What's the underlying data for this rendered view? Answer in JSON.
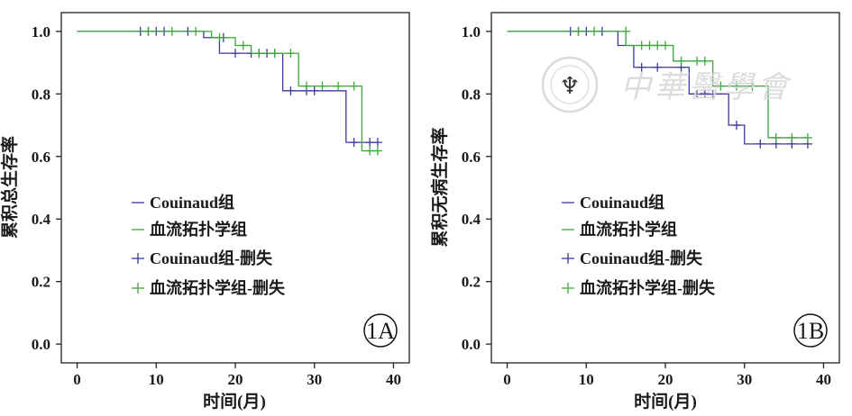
{
  "chart_data": [
    {
      "type": "line",
      "subtype": "kaplan-meier",
      "panel_label": "1A",
      "ylabel": "累积总生存率",
      "xlabel": "时间(月)",
      "xlim": [
        -2,
        42
      ],
      "ylim": [
        -0.06,
        1.06
      ],
      "xticks": [
        0,
        10,
        20,
        30,
        40
      ],
      "yticks": [
        0.0,
        0.2,
        0.4,
        0.6,
        0.8,
        1.0
      ],
      "ytick_labels": [
        "0.0",
        "0.2",
        "0.4",
        "0.6",
        "0.8",
        "1.0"
      ],
      "legend_position": "center-left",
      "series": [
        {
          "name": "Couinaud组",
          "censor_name": "Couinaud组-删失",
          "color": "#3a3a9e",
          "steps": [
            [
              0,
              1.0
            ],
            [
              16,
              0.98
            ],
            [
              18,
              0.93
            ],
            [
              26,
              0.81
            ],
            [
              34,
              0.645
            ],
            [
              38,
              0.645
            ]
          ],
          "censored": [
            [
              8,
              1.0
            ],
            [
              9,
              1.0
            ],
            [
              10,
              1.0
            ],
            [
              11,
              1.0
            ],
            [
              14,
              1.0
            ],
            [
              18.5,
              0.98
            ],
            [
              20,
              0.93
            ],
            [
              22,
              0.93
            ],
            [
              23,
              0.93
            ],
            [
              24,
              0.93
            ],
            [
              25,
              0.93
            ],
            [
              27,
              0.81
            ],
            [
              29,
              0.81
            ],
            [
              30,
              0.81
            ],
            [
              35,
              0.645
            ],
            [
              37,
              0.645
            ],
            [
              38,
              0.645
            ]
          ]
        },
        {
          "name": "血流拓扑学组",
          "censor_name": "血流拓扑学组-删失",
          "color": "#3aa83a",
          "steps": [
            [
              0,
              1.0
            ],
            [
              17,
              0.98
            ],
            [
              20,
              0.955
            ],
            [
              22,
              0.93
            ],
            [
              28,
              0.825
            ],
            [
              36,
              0.618
            ],
            [
              38,
              0.618
            ]
          ],
          "censored": [
            [
              9,
              1.0
            ],
            [
              12,
              1.0
            ],
            [
              15,
              1.0
            ],
            [
              18,
              0.98
            ],
            [
              21,
              0.955
            ],
            [
              23,
              0.93
            ],
            [
              25,
              0.93
            ],
            [
              27,
              0.93
            ],
            [
              29,
              0.825
            ],
            [
              31,
              0.825
            ],
            [
              33,
              0.825
            ],
            [
              35,
              0.825
            ],
            [
              37,
              0.618
            ],
            [
              38,
              0.618
            ]
          ]
        }
      ]
    },
    {
      "type": "line",
      "subtype": "kaplan-meier",
      "panel_label": "1B",
      "ylabel": "累积无病生存率",
      "xlabel": "时间(月)",
      "xlim": [
        -2,
        42
      ],
      "ylim": [
        -0.06,
        1.06
      ],
      "xticks": [
        0,
        10,
        20,
        30,
        40
      ],
      "yticks": [
        0.0,
        0.2,
        0.4,
        0.6,
        0.8,
        1.0
      ],
      "ytick_labels": [
        "0.0",
        "0.2",
        "0.4",
        "0.6",
        "0.8",
        "1.0"
      ],
      "legend_position": "center-left",
      "series": [
        {
          "name": "Couinaud组",
          "censor_name": "Couinaud组-删失",
          "color": "#3a3a9e",
          "steps": [
            [
              0,
              1.0
            ],
            [
              14,
              0.955
            ],
            [
              16,
              0.885
            ],
            [
              23,
              0.8
            ],
            [
              28,
              0.7
            ],
            [
              30,
              0.64
            ],
            [
              38,
              0.64
            ]
          ],
          "censored": [
            [
              8,
              1.0
            ],
            [
              9,
              1.0
            ],
            [
              10,
              1.0
            ],
            [
              12,
              1.0
            ],
            [
              17,
              0.885
            ],
            [
              19,
              0.885
            ],
            [
              22,
              0.885
            ],
            [
              24,
              0.8
            ],
            [
              25,
              0.8
            ],
            [
              26,
              0.8
            ],
            [
              29,
              0.7
            ],
            [
              32,
              0.64
            ],
            [
              34,
              0.64
            ],
            [
              36,
              0.64
            ],
            [
              38,
              0.64
            ]
          ]
        },
        {
          "name": "血流拓扑学组",
          "censor_name": "血流拓扑学组-删失",
          "color": "#3aa83a",
          "steps": [
            [
              0,
              1.0
            ],
            [
              15,
              0.955
            ],
            [
              21,
              0.905
            ],
            [
              26,
              0.825
            ],
            [
              33,
              0.66
            ],
            [
              38,
              0.66
            ]
          ],
          "censored": [
            [
              9,
              1.0
            ],
            [
              11,
              1.0
            ],
            [
              15,
              1.0
            ],
            [
              17,
              0.955
            ],
            [
              18,
              0.955
            ],
            [
              19,
              0.955
            ],
            [
              20,
              0.955
            ],
            [
              22,
              0.905
            ],
            [
              24,
              0.905
            ],
            [
              25,
              0.905
            ],
            [
              27,
              0.825
            ],
            [
              29,
              0.825
            ],
            [
              31,
              0.825
            ],
            [
              34,
              0.66
            ],
            [
              36,
              0.66
            ],
            [
              38,
              0.66
            ]
          ]
        }
      ]
    }
  ],
  "watermark": {
    "text": "中華醫學會"
  }
}
